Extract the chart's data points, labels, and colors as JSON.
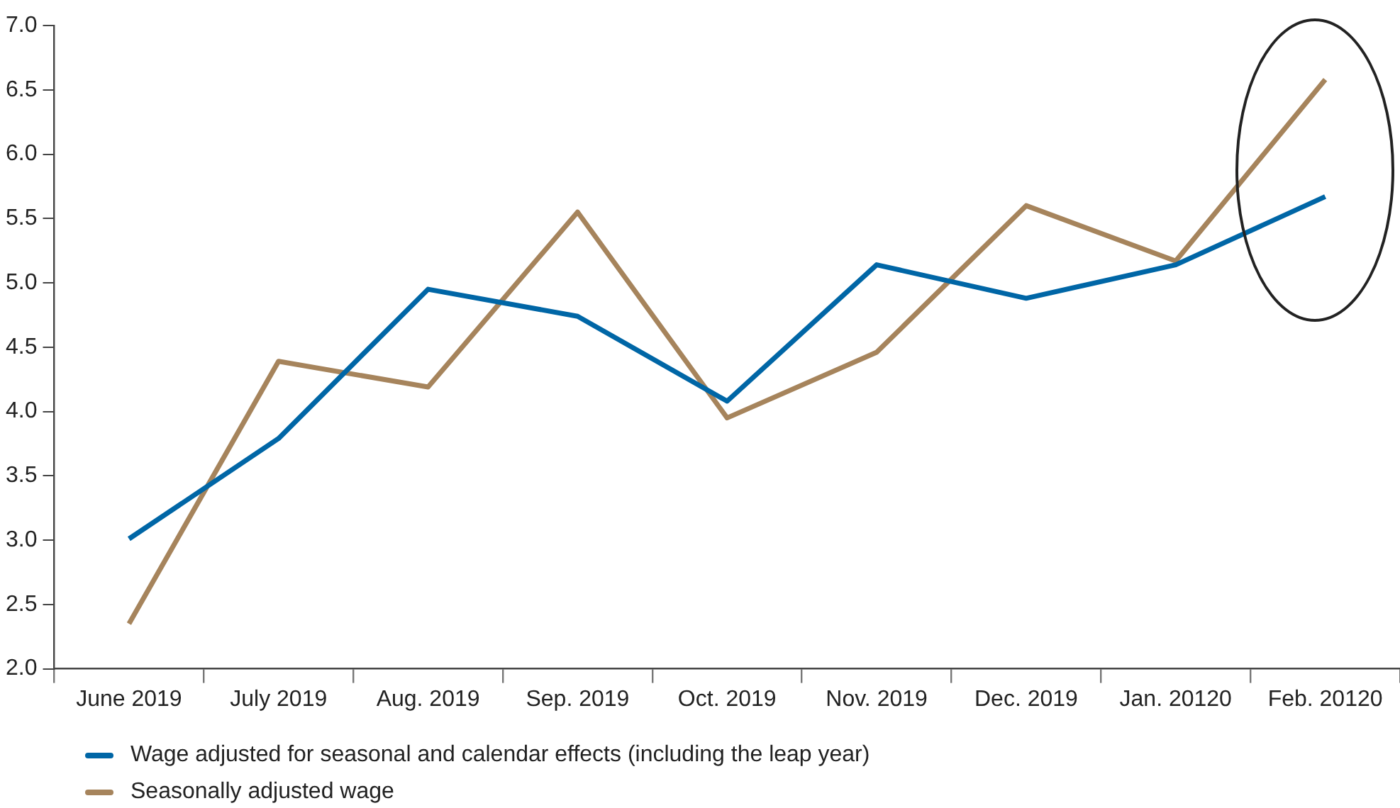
{
  "chart_data": {
    "type": "line",
    "categories": [
      "June 2019",
      "July 2019",
      "Aug. 2019",
      "Sep. 2019",
      "Oct. 2019",
      "Nov. 2019",
      "Dec. 2019",
      "Jan. 20120",
      "Feb. 20120"
    ],
    "series": [
      {
        "name": "Wage adjusted for seasonal and calendar effects (including the leap year)",
        "color": "#0066a6",
        "values": [
          3.01,
          3.79,
          4.95,
          4.74,
          4.08,
          5.14,
          4.88,
          5.14,
          5.67
        ]
      },
      {
        "name": "Seasonally adjusted wage",
        "color": "#a6845c",
        "values": [
          2.35,
          4.39,
          4.19,
          5.55,
          3.95,
          4.46,
          5.6,
          5.17,
          6.58
        ]
      }
    ],
    "ylim": [
      2,
      7
    ],
    "yticks": [
      {
        "value": 2,
        "label": "2.0"
      },
      2.5,
      {
        "value": 3,
        "label": "3.0"
      },
      3.5,
      {
        "value": 4,
        "label": "4.0"
      },
      4.5,
      {
        "value": 5,
        "label": "5.0"
      },
      5.5,
      {
        "value": 6,
        "label": "6.0"
      },
      6.5,
      {
        "value": 7,
        "label": "7.0"
      }
    ],
    "grid": false,
    "legend": "bottom",
    "marker": "none",
    "line_style": "solid"
  }
}
